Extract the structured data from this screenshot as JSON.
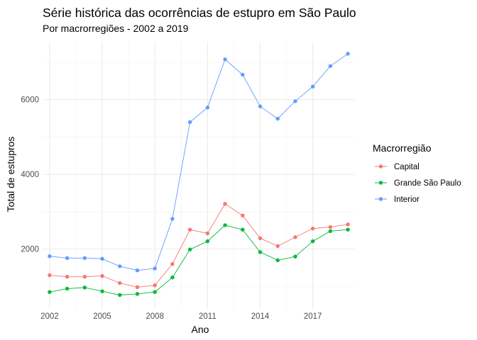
{
  "chart_data": {
    "type": "line",
    "title": "Série histórica das ocorrências de estupro em São Paulo",
    "subtitle": "Por macrorregiões - 2002 a 2019",
    "xlabel": "Ano",
    "ylabel": "Total de estupros",
    "x": [
      2002,
      2003,
      2004,
      2005,
      2006,
      2007,
      2008,
      2009,
      2010,
      2011,
      2012,
      2013,
      2014,
      2015,
      2016,
      2017,
      2018,
      2019
    ],
    "x_ticks": [
      "2002",
      "2005",
      "2008",
      "2011",
      "2014",
      "2017"
    ],
    "y_ticks": [
      "2000",
      "4000",
      "6000"
    ],
    "xlim": [
      2001.6,
      2019.4
    ],
    "ylim": [
      400,
      7550
    ],
    "grid": true,
    "legend_title": "Macrorregião",
    "legend_position": "right",
    "series": [
      {
        "name": "Capital",
        "color": "#F8766D",
        "values": [
          1300,
          1260,
          1260,
          1280,
          1090,
          980,
          1030,
          1600,
          2520,
          2420,
          3210,
          2900,
          2290,
          2080,
          2320,
          2550,
          2590,
          2660
        ]
      },
      {
        "name": "Grande São Paulo",
        "color": "#00BA38",
        "values": [
          850,
          940,
          970,
          870,
          770,
          800,
          850,
          1240,
          1990,
          2210,
          2640,
          2520,
          1920,
          1700,
          1800,
          2210,
          2480,
          2520
        ]
      },
      {
        "name": "Interior",
        "color": "#619CFF",
        "values": [
          1810,
          1760,
          1760,
          1740,
          1540,
          1430,
          1480,
          2810,
          5400,
          5790,
          7080,
          6670,
          5820,
          5490,
          5960,
          6350,
          6900,
          7230
        ]
      }
    ]
  }
}
